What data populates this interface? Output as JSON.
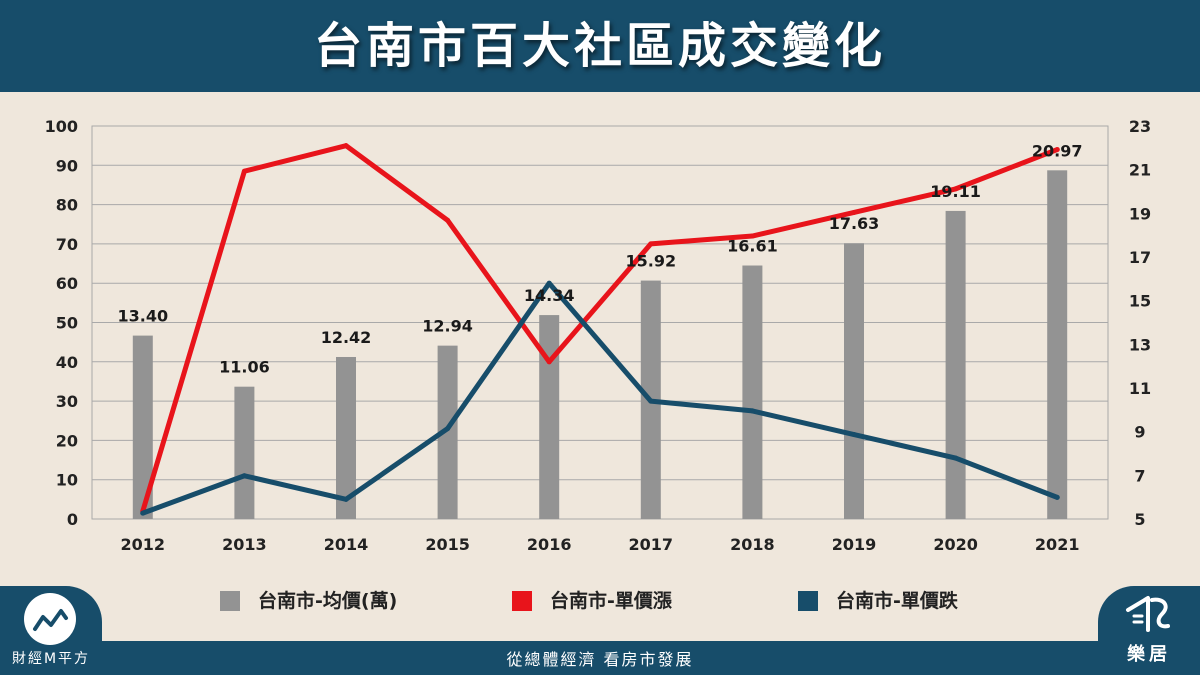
{
  "title": "台南市百大社區成交變化",
  "footer": {
    "left_brand": "財經M平方",
    "slogan": "從總體經濟 看房市發展",
    "right_brand": "樂居",
    "left_logo_icon": "trend-line-icon",
    "right_logo_icon": "leju-logo-icon"
  },
  "colors": {
    "header_bg": "#174d6a",
    "page_bg": "#efe7dc",
    "bar": "#939393",
    "rise_line": "#e8141b",
    "fall_line": "#174d6a"
  },
  "chart_data": {
    "type": "bar+line",
    "categories": [
      "2012",
      "2013",
      "2014",
      "2015",
      "2016",
      "2017",
      "2018",
      "2019",
      "2020",
      "2021"
    ],
    "bars": {
      "name": "台南市-均價(萬)",
      "values": [
        13.4,
        11.06,
        12.42,
        12.94,
        14.34,
        15.92,
        16.61,
        17.63,
        19.11,
        20.97
      ],
      "labels": [
        "13.40",
        "11.06",
        "12.42",
        "12.94",
        "14.34",
        "15.92",
        "16.61",
        "17.63",
        "19.11",
        "20.97"
      ],
      "axis": "right"
    },
    "series": [
      {
        "name": "台南市-單價漲",
        "values": [
          2,
          88.5,
          95,
          76,
          40,
          70,
          72,
          78,
          84,
          94
        ],
        "axis": "left"
      },
      {
        "name": "台南市-單價跌",
        "values": [
          1.5,
          11,
          5,
          23,
          60,
          30,
          27.5,
          21.5,
          15.5,
          5.5
        ],
        "axis": "left"
      }
    ],
    "left_axis": {
      "ylim": [
        0,
        100
      ],
      "ticks": [
        "0",
        "10",
        "20",
        "30",
        "40",
        "50",
        "60",
        "70",
        "80",
        "90",
        "100"
      ]
    },
    "right_axis": {
      "ylim": [
        5,
        23
      ],
      "ticks": [
        "5",
        "7",
        "9",
        "11",
        "13",
        "15",
        "17",
        "19",
        "21",
        "23"
      ]
    },
    "grid": true,
    "legend_position": "bottom"
  }
}
